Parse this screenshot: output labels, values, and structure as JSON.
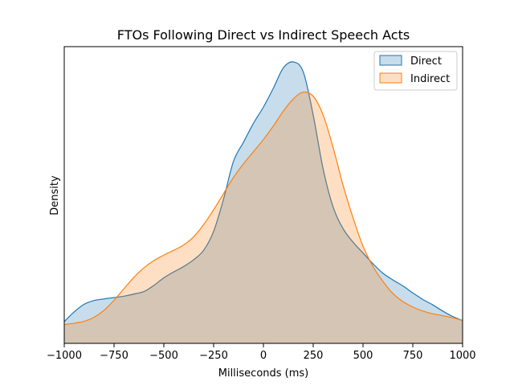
{
  "chart_data": {
    "type": "area",
    "title": "FTOs Following Direct vs Indirect Speech Acts",
    "xlabel": "Milliseconds (ms)",
    "ylabel": "Density",
    "xlim": [
      -1000,
      1000
    ],
    "ylim": [
      0,
      1.0
    ],
    "xticks": [
      -1000,
      -750,
      -500,
      -250,
      0,
      250,
      500,
      750,
      1000
    ],
    "xtick_labels": [
      "−1000",
      "−750",
      "−500",
      "−250",
      "0",
      "250",
      "500",
      "750",
      "1000"
    ],
    "yticks_shown": false,
    "grid": false,
    "legend_position": "top-right",
    "series": [
      {
        "name": "Direct",
        "color": "#1f77b4",
        "fill_opacity": 0.25,
        "x": [
          -1000,
          -950,
          -900,
          -850,
          -800,
          -700,
          -650,
          -600,
          -550,
          -500,
          -450,
          -400,
          -350,
          -300,
          -250,
          -200,
          -150,
          -100,
          -50,
          0,
          50,
          100,
          150,
          200,
          250,
          300,
          350,
          400,
          450,
          500,
          550,
          600,
          650,
          700,
          750,
          800,
          850,
          900,
          950,
          1000
        ],
        "values": [
          0.036,
          0.072,
          0.1,
          0.114,
          0.12,
          0.13,
          0.138,
          0.147,
          0.17,
          0.198,
          0.22,
          0.24,
          0.265,
          0.3,
          0.37,
          0.49,
          0.63,
          0.7,
          0.77,
          0.83,
          0.9,
          0.975,
          0.997,
          0.96,
          0.8,
          0.6,
          0.46,
          0.38,
          0.33,
          0.29,
          0.25,
          0.215,
          0.19,
          0.168,
          0.142,
          0.118,
          0.098,
          0.075,
          0.055,
          0.04
        ]
      },
      {
        "name": "Indirect",
        "color": "#ff7f0e",
        "fill_opacity": 0.25,
        "x": [
          -1000,
          -950,
          -900,
          -850,
          -800,
          -750,
          -700,
          -650,
          -600,
          -550,
          -500,
          -450,
          -400,
          -350,
          -300,
          -250,
          -200,
          -150,
          -100,
          -50,
          0,
          50,
          100,
          150,
          200,
          250,
          300,
          350,
          400,
          450,
          500,
          550,
          600,
          650,
          700,
          750,
          800,
          850,
          900,
          950,
          1000
        ],
        "values": [
          0.025,
          0.03,
          0.037,
          0.052,
          0.078,
          0.115,
          0.158,
          0.2,
          0.235,
          0.262,
          0.282,
          0.3,
          0.32,
          0.35,
          0.395,
          0.45,
          0.51,
          0.57,
          0.62,
          0.665,
          0.71,
          0.76,
          0.815,
          0.86,
          0.885,
          0.87,
          0.8,
          0.68,
          0.54,
          0.42,
          0.315,
          0.24,
          0.185,
          0.14,
          0.11,
          0.09,
          0.075,
          0.065,
          0.058,
          0.05,
          0.04
        ]
      }
    ]
  }
}
